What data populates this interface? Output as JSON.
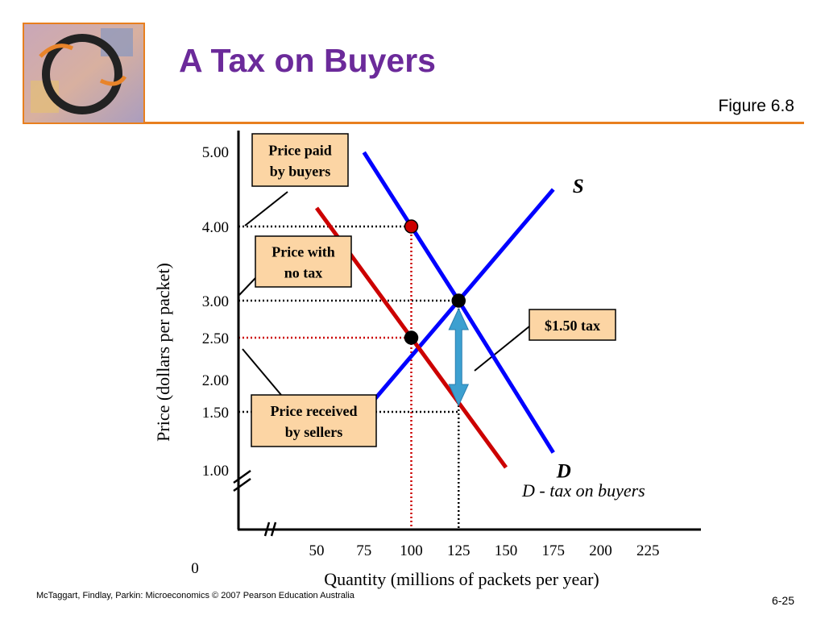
{
  "slide": {
    "title": "A Tax on Buyers",
    "figure_label": "Figure 6.8",
    "footer": "McTaggart, Findlay, Parkin: Microeconomics © 2007 Pearson Education Australia",
    "slide_number": "6-25"
  },
  "colors": {
    "title": "#6b2a9a",
    "accent_rule": "#e87f1e",
    "supply_demand": "#0000ff",
    "tax_demand": "#cc0000",
    "callout_fill": "#fcd5a4",
    "tax_arrow": "#3da0d0"
  },
  "chart_data": {
    "type": "line",
    "xlabel": "Quantity (millions of packets per year)",
    "ylabel": "Price (dollars per packet)",
    "origin_label": "0",
    "xlim": [
      25,
      225
    ],
    "ylim": [
      0.75,
      5.25
    ],
    "x_ticks": [
      "50",
      "75",
      "100",
      "125",
      "150",
      "175",
      "200",
      "225"
    ],
    "y_ticks": [
      "1.00",
      "1.50",
      "2.00",
      "2.50",
      "3.00",
      "4.00",
      "5.00"
    ],
    "axis_breaks": [
      "x",
      "y"
    ],
    "grid": false,
    "series": [
      {
        "name": "S",
        "points": [
          [
            75,
            1.5
          ],
          [
            125,
            3.0
          ],
          [
            175,
            4.5
          ]
        ]
      },
      {
        "name": "D",
        "points": [
          [
            75,
            5.0
          ],
          [
            125,
            3.0
          ],
          [
            175,
            0.95
          ]
        ]
      },
      {
        "name": "D - tax on buyers",
        "points": [
          [
            50,
            4.25
          ],
          [
            100,
            2.5
          ],
          [
            150,
            0.75
          ]
        ]
      }
    ],
    "equilibrium_points": [
      {
        "label": "no tax",
        "x": 125,
        "y": 3.0,
        "color": "#000000"
      },
      {
        "label": "with tax (sellers)",
        "x": 100,
        "y": 2.5,
        "color": "#000000"
      },
      {
        "label": "with tax (buyers)",
        "x": 100,
        "y": 4.0,
        "color": "#cc0000"
      }
    ],
    "reference_lines": [
      {
        "axis": "y",
        "value": 4.0,
        "to_x": 100,
        "color": "#000000"
      },
      {
        "axis": "y",
        "value": 3.0,
        "to_x": 125,
        "color": "#000000"
      },
      {
        "axis": "y",
        "value": 2.5,
        "to_x": 100,
        "color": "#cc0000"
      },
      {
        "axis": "y",
        "value": 1.5,
        "to_x": 125,
        "color": "#000000"
      },
      {
        "axis": "x",
        "value": 100,
        "from_y": 4.0,
        "color": "#cc0000"
      },
      {
        "axis": "x",
        "value": 125,
        "from_y": 3.0,
        "color": "#000000"
      }
    ],
    "tax_arrow": {
      "x": 125,
      "from_y": 1.5,
      "to_y": 3.0
    },
    "callouts": [
      {
        "text": [
          "Price paid",
          "by buyers"
        ],
        "points_to_y": 4.0
      },
      {
        "text": [
          "Price with",
          "no tax"
        ],
        "points_to_y": 3.0
      },
      {
        "text": [
          "Price received",
          "by sellers"
        ],
        "points_to_y": 2.5
      },
      {
        "text": [
          "$1.50 tax"
        ],
        "points_to": "tax_arrow"
      }
    ]
  }
}
